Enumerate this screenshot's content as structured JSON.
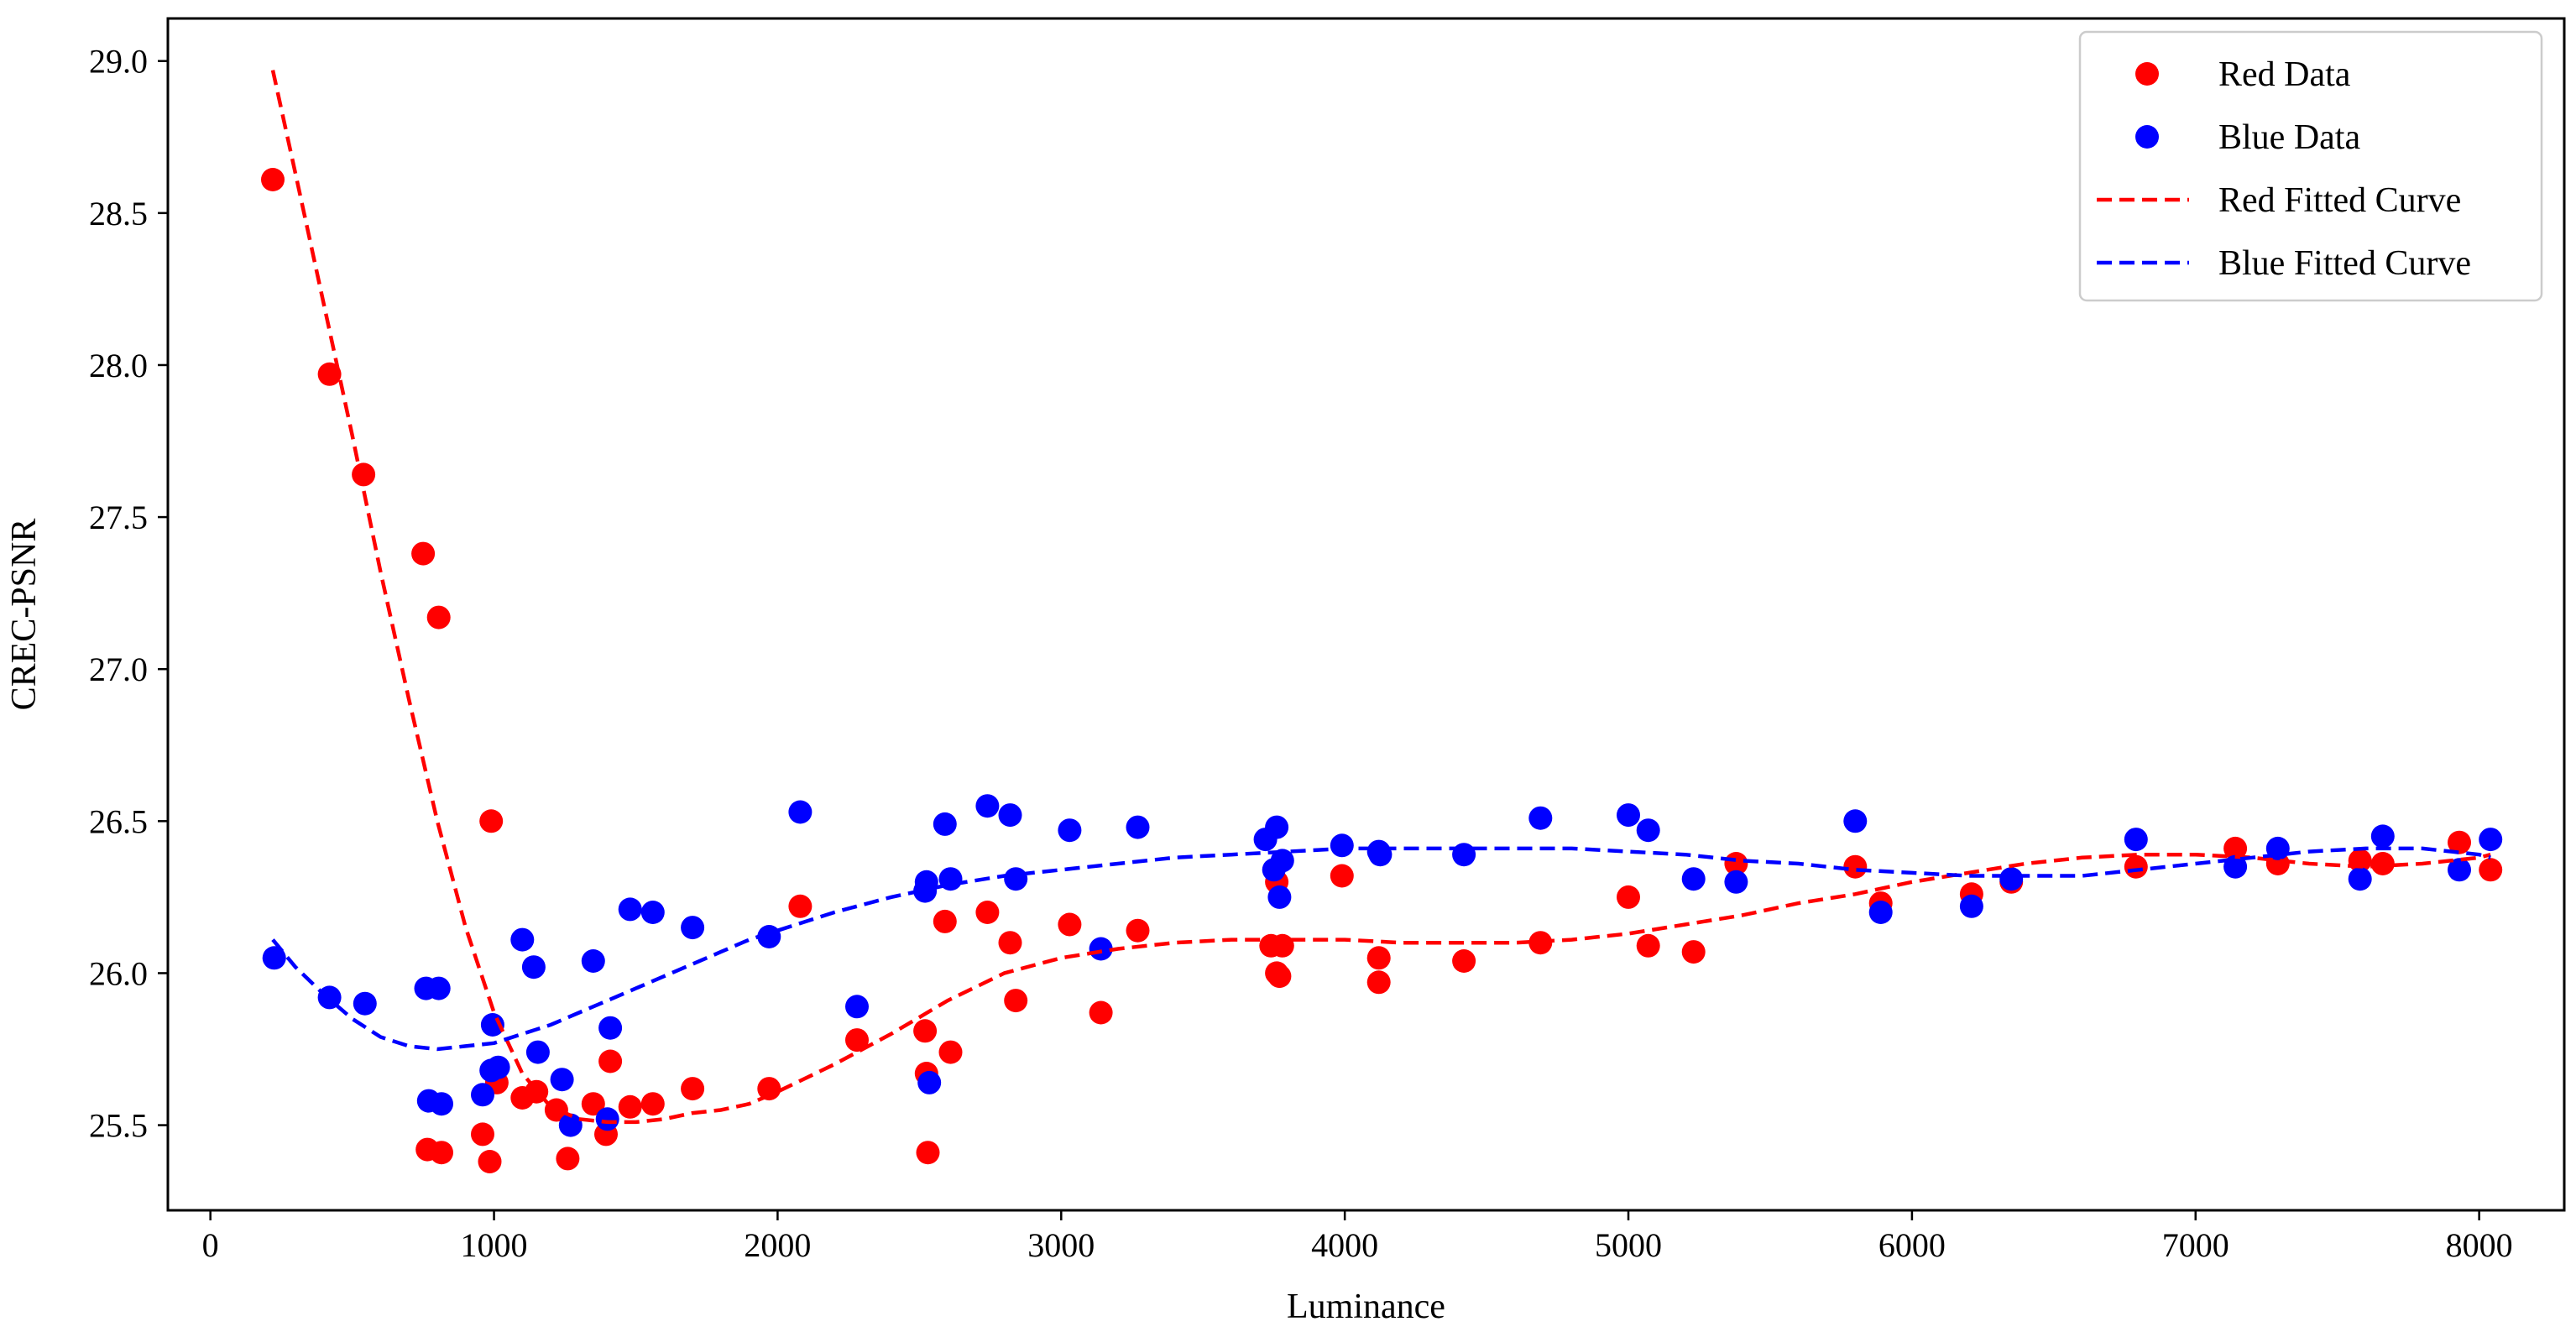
{
  "chart_data": {
    "type": "scatter",
    "title": "",
    "xlabel": "Luminance",
    "ylabel": "CREC-PSNR",
    "xlim": [
      -150,
      8300
    ],
    "ylim": [
      25.22,
      29.14
    ],
    "x_ticks": [
      0,
      1000,
      2000,
      3000,
      4000,
      5000,
      6000,
      7000,
      8000
    ],
    "y_ticks": [
      25.5,
      26.0,
      26.5,
      27.0,
      27.5,
      28.0,
      28.5,
      29.0
    ],
    "x_tick_labels": [
      "0",
      "1000",
      "2000",
      "3000",
      "4000",
      "5000",
      "6000",
      "7000",
      "8000"
    ],
    "y_tick_labels": [
      "25.5",
      "26.0",
      "26.5",
      "27.0",
      "27.5",
      "28.0",
      "28.5",
      "29.0"
    ],
    "grid": false,
    "legend_position": "top-right",
    "legend": [
      {
        "label": "Red Data",
        "kind": "marker",
        "color": "#ff0000"
      },
      {
        "label": "Blue Data",
        "kind": "marker",
        "color": "#0000ff"
      },
      {
        "label": "Red Fitted Curve",
        "kind": "dashed",
        "color": "#ff0000"
      },
      {
        "label": "Blue Fitted Curve",
        "kind": "dashed",
        "color": "#0000ff"
      }
    ],
    "series": [
      {
        "name": "Red Data",
        "kind": "scatter",
        "color": "#ff0000",
        "points": [
          [
            220,
            28.61
          ],
          [
            420,
            27.97
          ],
          [
            540,
            27.64
          ],
          [
            750,
            27.38
          ],
          [
            805,
            27.17
          ],
          [
            765,
            25.42
          ],
          [
            815,
            25.41
          ],
          [
            960,
            25.47
          ],
          [
            985,
            25.38
          ],
          [
            990,
            26.5
          ],
          [
            1010,
            25.64
          ],
          [
            1100,
            25.59
          ],
          [
            1150,
            25.61
          ],
          [
            1220,
            25.55
          ],
          [
            1260,
            25.39
          ],
          [
            1350,
            25.57
          ],
          [
            1395,
            25.47
          ],
          [
            1410,
            25.71
          ],
          [
            1480,
            25.56
          ],
          [
            1560,
            25.57
          ],
          [
            1700,
            25.62
          ],
          [
            1970,
            25.62
          ],
          [
            2080,
            26.22
          ],
          [
            2280,
            25.78
          ],
          [
            2520,
            25.81
          ],
          [
            2525,
            25.67
          ],
          [
            2530,
            25.41
          ],
          [
            2590,
            26.17
          ],
          [
            2610,
            25.74
          ],
          [
            2740,
            26.2
          ],
          [
            2820,
            26.1
          ],
          [
            2840,
            25.91
          ],
          [
            3030,
            26.16
          ],
          [
            3140,
            25.87
          ],
          [
            3270,
            26.14
          ],
          [
            3740,
            26.09
          ],
          [
            3760,
            26.0
          ],
          [
            3770,
            25.99
          ],
          [
            3780,
            26.09
          ],
          [
            3760,
            26.3
          ],
          [
            3990,
            26.32
          ],
          [
            4120,
            26.05
          ],
          [
            4120,
            25.97
          ],
          [
            4420,
            26.04
          ],
          [
            4690,
            26.1
          ],
          [
            5000,
            26.25
          ],
          [
            5070,
            26.09
          ],
          [
            5230,
            26.07
          ],
          [
            5380,
            26.36
          ],
          [
            5800,
            26.35
          ],
          [
            5890,
            26.23
          ],
          [
            6210,
            26.26
          ],
          [
            6350,
            26.3
          ],
          [
            6790,
            26.35
          ],
          [
            7140,
            26.41
          ],
          [
            7290,
            26.36
          ],
          [
            7580,
            26.37
          ],
          [
            7660,
            26.36
          ],
          [
            7930,
            26.43
          ],
          [
            8040,
            26.34
          ]
        ]
      },
      {
        "name": "Blue Data",
        "kind": "scatter",
        "color": "#0000ff",
        "points": [
          [
            225,
            26.05
          ],
          [
            420,
            25.92
          ],
          [
            545,
            25.9
          ],
          [
            760,
            25.95
          ],
          [
            805,
            25.95
          ],
          [
            770,
            25.58
          ],
          [
            815,
            25.57
          ],
          [
            960,
            25.6
          ],
          [
            990,
            25.68
          ],
          [
            995,
            25.83
          ],
          [
            1015,
            25.69
          ],
          [
            1100,
            26.11
          ],
          [
            1140,
            26.02
          ],
          [
            1155,
            25.74
          ],
          [
            1240,
            25.65
          ],
          [
            1270,
            25.5
          ],
          [
            1350,
            26.04
          ],
          [
            1400,
            25.52
          ],
          [
            1410,
            25.82
          ],
          [
            1480,
            26.21
          ],
          [
            1560,
            26.2
          ],
          [
            1700,
            26.15
          ],
          [
            1970,
            26.12
          ],
          [
            2080,
            26.53
          ],
          [
            2280,
            25.89
          ],
          [
            2520,
            26.27
          ],
          [
            2525,
            26.3
          ],
          [
            2535,
            25.64
          ],
          [
            2590,
            26.49
          ],
          [
            2610,
            26.31
          ],
          [
            2740,
            26.55
          ],
          [
            2820,
            26.52
          ],
          [
            2840,
            26.31
          ],
          [
            3030,
            26.47
          ],
          [
            3140,
            26.08
          ],
          [
            3270,
            26.48
          ],
          [
            3720,
            26.44
          ],
          [
            3760,
            26.48
          ],
          [
            3750,
            26.34
          ],
          [
            3770,
            26.25
          ],
          [
            3780,
            26.37
          ],
          [
            3990,
            26.42
          ],
          [
            4120,
            26.4
          ],
          [
            4125,
            26.39
          ],
          [
            4420,
            26.39
          ],
          [
            4690,
            26.51
          ],
          [
            5000,
            26.52
          ],
          [
            5070,
            26.47
          ],
          [
            5230,
            26.31
          ],
          [
            5380,
            26.3
          ],
          [
            5800,
            26.5
          ],
          [
            5890,
            26.2
          ],
          [
            6210,
            26.22
          ],
          [
            6350,
            26.31
          ],
          [
            6790,
            26.44
          ],
          [
            7140,
            26.35
          ],
          [
            7290,
            26.41
          ],
          [
            7580,
            26.31
          ],
          [
            7660,
            26.45
          ],
          [
            7930,
            26.34
          ],
          [
            8040,
            26.44
          ]
        ]
      },
      {
        "name": "Red Fitted Curve",
        "kind": "line",
        "style": "dashed",
        "color": "#ff0000",
        "points": [
          [
            220,
            28.97
          ],
          [
            300,
            28.63
          ],
          [
            400,
            28.2
          ],
          [
            500,
            27.77
          ],
          [
            600,
            27.32
          ],
          [
            700,
            26.9
          ],
          [
            800,
            26.5
          ],
          [
            900,
            26.15
          ],
          [
            1000,
            25.87
          ],
          [
            1100,
            25.67
          ],
          [
            1200,
            25.56
          ],
          [
            1300,
            25.52
          ],
          [
            1400,
            25.51
          ],
          [
            1500,
            25.51
          ],
          [
            1600,
            25.52
          ],
          [
            1700,
            25.54
          ],
          [
            1800,
            25.55
          ],
          [
            1900,
            25.57
          ],
          [
            2000,
            25.61
          ],
          [
            2200,
            25.7
          ],
          [
            2400,
            25.8
          ],
          [
            2600,
            25.91
          ],
          [
            2800,
            26.0
          ],
          [
            3000,
            26.05
          ],
          [
            3200,
            26.08
          ],
          [
            3400,
            26.1
          ],
          [
            3600,
            26.11
          ],
          [
            3800,
            26.11
          ],
          [
            4000,
            26.11
          ],
          [
            4200,
            26.1
          ],
          [
            4400,
            26.1
          ],
          [
            4600,
            26.1
          ],
          [
            4800,
            26.11
          ],
          [
            5000,
            26.13
          ],
          [
            5200,
            26.16
          ],
          [
            5400,
            26.19
          ],
          [
            5600,
            26.23
          ],
          [
            5800,
            26.26
          ],
          [
            6000,
            26.3
          ],
          [
            6200,
            26.33
          ],
          [
            6400,
            26.36
          ],
          [
            6600,
            26.38
          ],
          [
            6800,
            26.39
          ],
          [
            7000,
            26.39
          ],
          [
            7200,
            26.38
          ],
          [
            7400,
            26.36
          ],
          [
            7600,
            26.35
          ],
          [
            7800,
            26.36
          ],
          [
            8000,
            26.38
          ],
          [
            8040,
            26.39
          ]
        ]
      },
      {
        "name": "Blue Fitted Curve",
        "kind": "line",
        "style": "dashed",
        "color": "#0000ff",
        "points": [
          [
            220,
            26.11
          ],
          [
            300,
            26.02
          ],
          [
            400,
            25.93
          ],
          [
            500,
            25.85
          ],
          [
            600,
            25.79
          ],
          [
            700,
            25.76
          ],
          [
            800,
            25.75
          ],
          [
            900,
            25.76
          ],
          [
            1000,
            25.77
          ],
          [
            1100,
            25.8
          ],
          [
            1200,
            25.83
          ],
          [
            1300,
            25.87
          ],
          [
            1400,
            25.91
          ],
          [
            1500,
            25.95
          ],
          [
            1600,
            25.99
          ],
          [
            1700,
            26.03
          ],
          [
            1800,
            26.07
          ],
          [
            1900,
            26.11
          ],
          [
            2000,
            26.14
          ],
          [
            2200,
            26.2
          ],
          [
            2400,
            26.25
          ],
          [
            2600,
            26.29
          ],
          [
            2800,
            26.32
          ],
          [
            3000,
            26.34
          ],
          [
            3200,
            26.36
          ],
          [
            3400,
            26.38
          ],
          [
            3600,
            26.39
          ],
          [
            3800,
            26.4
          ],
          [
            4000,
            26.41
          ],
          [
            4200,
            26.41
          ],
          [
            4400,
            26.41
          ],
          [
            4600,
            26.41
          ],
          [
            4800,
            26.41
          ],
          [
            5000,
            26.4
          ],
          [
            5200,
            26.39
          ],
          [
            5400,
            26.37
          ],
          [
            5600,
            26.36
          ],
          [
            5800,
            26.34
          ],
          [
            6000,
            26.33
          ],
          [
            6200,
            26.32
          ],
          [
            6400,
            26.32
          ],
          [
            6600,
            26.32
          ],
          [
            6800,
            26.34
          ],
          [
            7000,
            26.36
          ],
          [
            7200,
            26.38
          ],
          [
            7400,
            26.4
          ],
          [
            7600,
            26.41
          ],
          [
            7800,
            26.41
          ],
          [
            8000,
            26.39
          ],
          [
            8040,
            26.38
          ]
        ]
      }
    ]
  }
}
